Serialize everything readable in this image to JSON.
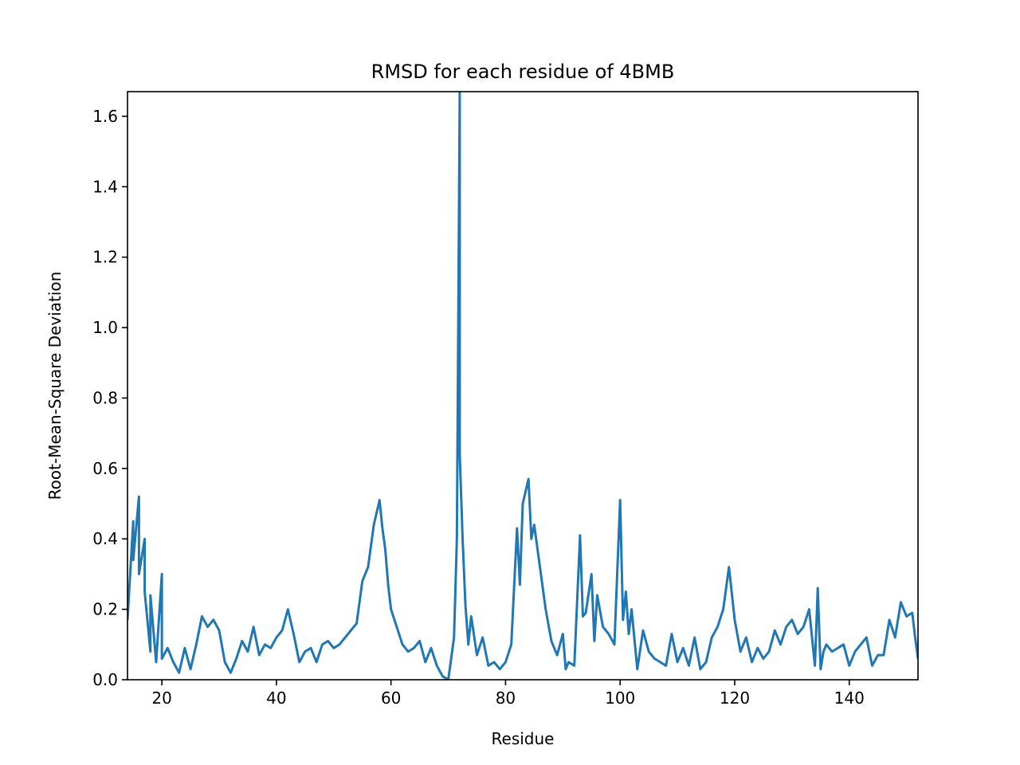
{
  "chart_data": {
    "type": "line",
    "title": "RMSD for each residue of 4BMB",
    "xlabel": "Residue",
    "ylabel": "Root-Mean-Square Deviation",
    "xlim": [
      14,
      152
    ],
    "ylim": [
      0,
      1.67
    ],
    "xticks": [
      20,
      40,
      60,
      80,
      100,
      120,
      140
    ],
    "yticks": [
      {
        "value": 0,
        "label": "0.0"
      },
      0.2,
      0.4,
      0.6,
      0.8,
      {
        "value": 1,
        "label": "1.0"
      },
      1.2,
      1.4,
      1.6
    ],
    "series": [
      {
        "color": "#1f77b4",
        "x": [
          14,
          15,
          15,
          16,
          16,
          17,
          17,
          18,
          18,
          19,
          20,
          20,
          21,
          22,
          23,
          24,
          25,
          26,
          27,
          28,
          29,
          30,
          31,
          32,
          33,
          34,
          35,
          36,
          37,
          38,
          39,
          40,
          41,
          42,
          43,
          44,
          45,
          46,
          47,
          48,
          49,
          50,
          51,
          52,
          53,
          54,
          55,
          56,
          57,
          58,
          58.5,
          59,
          59.5,
          60,
          61,
          62,
          63,
          64,
          65,
          66,
          67,
          68,
          69,
          70,
          70.5,
          71,
          71.5,
          72,
          72,
          72.5,
          73,
          73.5,
          74,
          75,
          76,
          77,
          78,
          79,
          80,
          81,
          82,
          82.5,
          83,
          84,
          84.5,
          85,
          86,
          87,
          88,
          89,
          90,
          90.5,
          91,
          92,
          93,
          93.5,
          94,
          95,
          95.5,
          96,
          97,
          98,
          99,
          100,
          100.5,
          101,
          101.5,
          102,
          103,
          104,
          105,
          106,
          107,
          108,
          109,
          110,
          111,
          112,
          113,
          114,
          115,
          116,
          117,
          118,
          119,
          120,
          121,
          122,
          123,
          124,
          125,
          126,
          127,
          128,
          129,
          130,
          131,
          132,
          133,
          134,
          134.5,
          135,
          135.5,
          136,
          137,
          138,
          139,
          140,
          141,
          142,
          143,
          144,
          145,
          146,
          147,
          148,
          149,
          150,
          151,
          151.5,
          152
        ],
        "values": [
          0.17,
          0.45,
          0.34,
          0.52,
          0.3,
          0.4,
          0.25,
          0.08,
          0.24,
          0.05,
          0.3,
          0.06,
          0.09,
          0.05,
          0.02,
          0.09,
          0.03,
          0.1,
          0.18,
          0.15,
          0.17,
          0.14,
          0.05,
          0.02,
          0.06,
          0.11,
          0.08,
          0.15,
          0.07,
          0.1,
          0.09,
          0.12,
          0.14,
          0.2,
          0.13,
          0.05,
          0.08,
          0.09,
          0.05,
          0.1,
          0.11,
          0.09,
          0.1,
          0.12,
          0.14,
          0.16,
          0.28,
          0.32,
          0.44,
          0.51,
          0.43,
          0.37,
          0.27,
          0.2,
          0.15,
          0.1,
          0.08,
          0.09,
          0.11,
          0.05,
          0.09,
          0.04,
          0.01,
          0.0,
          0.06,
          0.12,
          0.4,
          1.67,
          0.64,
          0.4,
          0.21,
          0.1,
          0.18,
          0.07,
          0.12,
          0.04,
          0.05,
          0.03,
          0.05,
          0.1,
          0.43,
          0.27,
          0.5,
          0.57,
          0.4,
          0.44,
          0.32,
          0.2,
          0.11,
          0.07,
          0.13,
          0.03,
          0.05,
          0.04,
          0.41,
          0.18,
          0.19,
          0.3,
          0.11,
          0.24,
          0.15,
          0.13,
          0.1,
          0.51,
          0.17,
          0.25,
          0.13,
          0.2,
          0.03,
          0.14,
          0.08,
          0.06,
          0.05,
          0.04,
          0.13,
          0.05,
          0.09,
          0.04,
          0.12,
          0.03,
          0.05,
          0.12,
          0.15,
          0.2,
          0.32,
          0.17,
          0.08,
          0.12,
          0.05,
          0.09,
          0.06,
          0.08,
          0.14,
          0.1,
          0.15,
          0.17,
          0.13,
          0.15,
          0.2,
          0.04,
          0.26,
          0.03,
          0.08,
          0.1,
          0.08,
          0.09,
          0.1,
          0.04,
          0.08,
          0.1,
          0.12,
          0.04,
          0.07,
          0.07,
          0.17,
          0.12,
          0.22,
          0.18,
          0.19,
          0.12,
          0.06
        ]
      }
    ]
  }
}
